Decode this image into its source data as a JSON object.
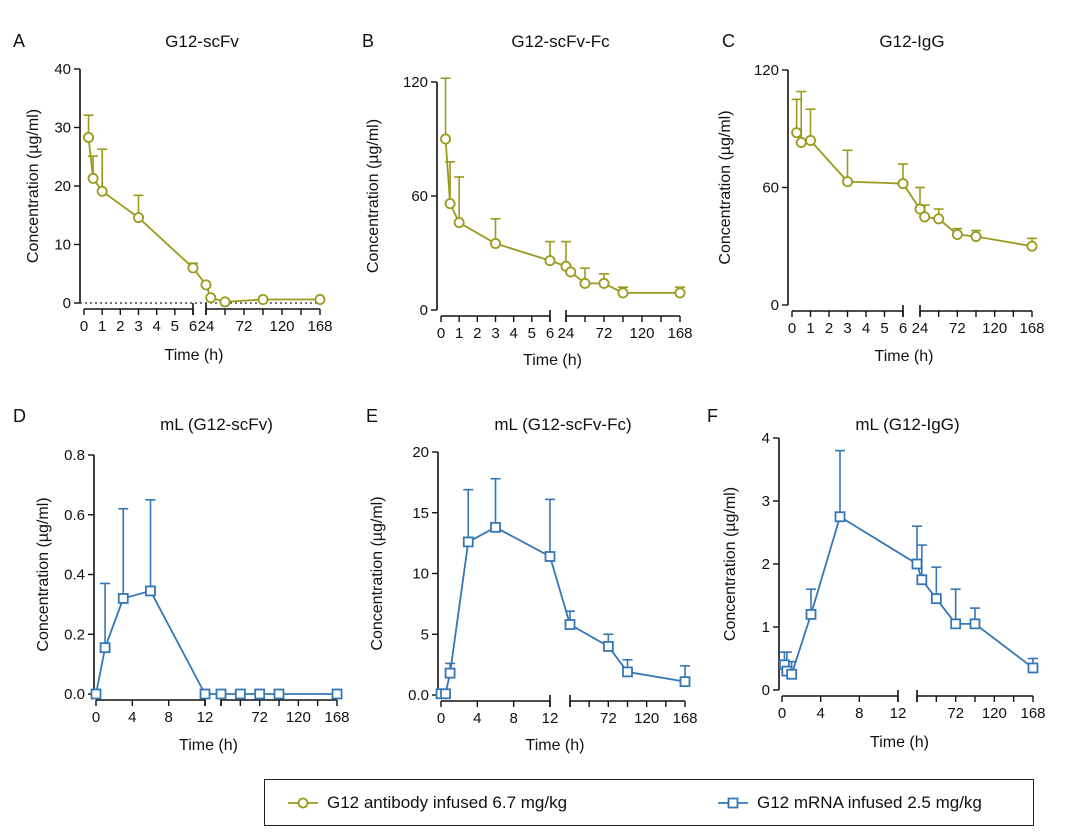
{
  "colors": {
    "antibody": "#9a9a1e",
    "mrna": "#3576b5",
    "axis": "#111111"
  },
  "legend": {
    "antibody_label": "G12 antibody infused 6.7 mg/kg",
    "mrna_label": "G12 mRNA infused 2.5 mg/kg"
  },
  "chart_data": [
    {
      "panel": "A",
      "title": "G12-scFv",
      "type": "line",
      "marker": "circle",
      "color_key": "antibody",
      "xlabel": "Time (h)",
      "ylabel": "Concentration (µg/ml)",
      "ylim": [
        0,
        40
      ],
      "yticks": [
        0,
        10,
        20,
        30,
        40
      ],
      "dotted_zero": true,
      "x_segments": [
        {
          "range": [
            0,
            6
          ],
          "ticks": [
            0,
            1,
            2,
            3,
            4,
            5,
            6
          ]
        },
        {
          "range": [
            24,
            168
          ],
          "ticks": [
            24,
            48,
            72,
            96,
            120,
            144,
            168
          ],
          "tick_labels": [
            "24",
            "",
            "72",
            "",
            "120",
            "",
            "168"
          ]
        }
      ],
      "series": [
        {
          "name": "G12 antibody infused 6.7 mg/kg",
          "x": [
            0.25,
            0.5,
            1,
            3,
            6,
            24,
            30,
            48,
            96,
            168
          ],
          "y": [
            28.3,
            21.3,
            19.1,
            14.6,
            6.0,
            3.1,
            0.9,
            0.2,
            0.6,
            0.6
          ],
          "err": [
            3.8,
            3.8,
            7.2,
            3.8,
            0.8,
            0,
            0,
            0,
            0,
            0
          ]
        }
      ]
    },
    {
      "panel": "B",
      "title": "G12-scFv-Fc",
      "type": "line",
      "marker": "circle",
      "color_key": "antibody",
      "xlabel": "Time (h)",
      "ylabel": "Concentration (µg/ml)",
      "ylim": [
        0,
        120
      ],
      "yticks": [
        0,
        60,
        120
      ],
      "x_segments": [
        {
          "range": [
            0,
            6
          ],
          "ticks": [
            0,
            1,
            2,
            3,
            4,
            5,
            6
          ]
        },
        {
          "range": [
            24,
            168
          ],
          "ticks": [
            24,
            48,
            72,
            96,
            120,
            144,
            168
          ],
          "tick_labels": [
            "24",
            "",
            "72",
            "",
            "120",
            "",
            "168"
          ]
        }
      ],
      "series": [
        {
          "name": "G12 antibody infused 6.7 mg/kg",
          "x": [
            0.25,
            0.5,
            1,
            3,
            6,
            24,
            30,
            48,
            72,
            96,
            168
          ],
          "y": [
            90,
            56,
            46,
            35,
            26,
            23,
            20,
            14,
            14,
            9,
            9
          ],
          "err": [
            32,
            22,
            24,
            13,
            10,
            13,
            0,
            8,
            5,
            3,
            3
          ]
        }
      ]
    },
    {
      "panel": "C",
      "title": "G12-IgG",
      "type": "line",
      "marker": "circle",
      "color_key": "antibody",
      "xlabel": "Time (h)",
      "ylabel": "Concentration (µg/ml)",
      "ylim": [
        0,
        120
      ],
      "yticks": [
        0,
        60,
        120
      ],
      "x_segments": [
        {
          "range": [
            0,
            6
          ],
          "ticks": [
            0,
            1,
            2,
            3,
            4,
            5,
            6
          ]
        },
        {
          "range": [
            24,
            168
          ],
          "ticks": [
            24,
            48,
            72,
            96,
            120,
            144,
            168
          ],
          "tick_labels": [
            "24",
            "",
            "72",
            "",
            "120",
            "",
            "168"
          ]
        }
      ],
      "series": [
        {
          "name": "G12 antibody infused 6.7 mg/kg",
          "x": [
            0.25,
            0.5,
            1,
            3,
            6,
            24,
            30,
            48,
            72,
            96,
            168
          ],
          "y": [
            88,
            83,
            84,
            63,
            62,
            49,
            45,
            44,
            36,
            35,
            30
          ],
          "err": [
            17,
            26,
            16,
            16,
            10,
            11,
            6,
            5,
            3,
            3,
            4
          ]
        }
      ]
    },
    {
      "panel": "D",
      "title": "mL (G12-scFv)",
      "type": "line",
      "marker": "square",
      "color_key": "mrna",
      "xlabel": "Time (h)",
      "ylabel": "Concentration (µg/ml)",
      "ylim": [
        0,
        0.8
      ],
      "yticks": [
        0,
        0.2,
        0.4,
        0.6,
        0.8
      ],
      "ytick_labels": [
        "0.0",
        "0.2",
        "0.4",
        "0.6",
        "0.8"
      ],
      "x_segments": [
        {
          "range": [
            0,
            12
          ],
          "ticks": [
            0,
            4,
            8,
            12
          ]
        },
        {
          "range": [
            24,
            168
          ],
          "ticks": [
            24,
            48,
            72,
            96,
            120,
            144,
            168
          ],
          "tick_labels": [
            "",
            "",
            "72",
            "",
            "120",
            "",
            "168"
          ]
        }
      ],
      "series": [
        {
          "name": "G12 mRNA infused 2.5 mg/kg",
          "x": [
            0,
            1,
            3,
            6,
            12,
            24,
            48,
            72,
            96,
            168
          ],
          "y": [
            0,
            0.155,
            0.32,
            0.345,
            0,
            0,
            0,
            0,
            0,
            0
          ],
          "err": [
            0,
            0.215,
            0.3,
            0.305,
            0,
            0,
            0,
            0,
            0,
            0
          ]
        }
      ]
    },
    {
      "panel": "E",
      "title": "mL (G12-scFv-Fc)",
      "type": "line",
      "marker": "square",
      "color_key": "mrna",
      "xlabel": "Time (h)",
      "ylabel": "Concentration (µg/ml)",
      "ylim": [
        0,
        20
      ],
      "yticks": [
        0,
        5,
        10,
        15,
        20
      ],
      "ytick_labels": [
        "0.0",
        "5",
        "10",
        "15",
        "20"
      ],
      "x_segments": [
        {
          "range": [
            0,
            12
          ],
          "ticks": [
            0,
            4,
            8,
            12
          ]
        },
        {
          "range": [
            24,
            168
          ],
          "ticks": [
            24,
            48,
            72,
            96,
            120,
            144,
            168
          ],
          "tick_labels": [
            "",
            "",
            "72",
            "",
            "120",
            "",
            "168"
          ]
        }
      ],
      "series": [
        {
          "name": "G12 mRNA infused 2.5 mg/kg",
          "x": [
            0,
            0.5,
            1,
            3,
            6,
            12,
            24,
            72,
            96,
            168
          ],
          "y": [
            0.1,
            0.1,
            1.8,
            12.6,
            13.8,
            11.4,
            5.8,
            4.0,
            1.9,
            1.1
          ],
          "err": [
            0,
            0,
            0.8,
            4.3,
            4.0,
            4.7,
            1.1,
            1.0,
            1.0,
            1.3
          ]
        }
      ]
    },
    {
      "panel": "F",
      "title": "mL (G12-IgG)",
      "type": "line",
      "marker": "square",
      "color_key": "mrna",
      "xlabel": "Time (h)",
      "ylabel": "Concentration (µg/ml)",
      "ylim": [
        0,
        4
      ],
      "yticks": [
        0,
        1,
        2,
        3,
        4
      ],
      "x_segments": [
        {
          "range": [
            0,
            12
          ],
          "ticks": [
            0,
            4,
            8,
            12
          ]
        },
        {
          "range": [
            24,
            168
          ],
          "ticks": [
            24,
            48,
            72,
            96,
            120,
            144,
            168
          ],
          "tick_labels": [
            "",
            "",
            "72",
            "",
            "120",
            "",
            "168"
          ]
        }
      ],
      "series": [
        {
          "name": "G12 mRNA infused 2.5 mg/kg",
          "x": [
            0.25,
            0.5,
            1,
            3,
            6,
            24,
            30,
            48,
            72,
            96,
            168
          ],
          "y": [
            0.4,
            0.3,
            0.25,
            1.2,
            2.75,
            2.0,
            1.75,
            1.45,
            1.05,
            1.05,
            0.35
          ],
          "err": [
            0.2,
            0.3,
            0.2,
            0.4,
            1.05,
            0.6,
            0.55,
            0.5,
            0.55,
            0.25,
            0.15
          ]
        }
      ]
    }
  ]
}
